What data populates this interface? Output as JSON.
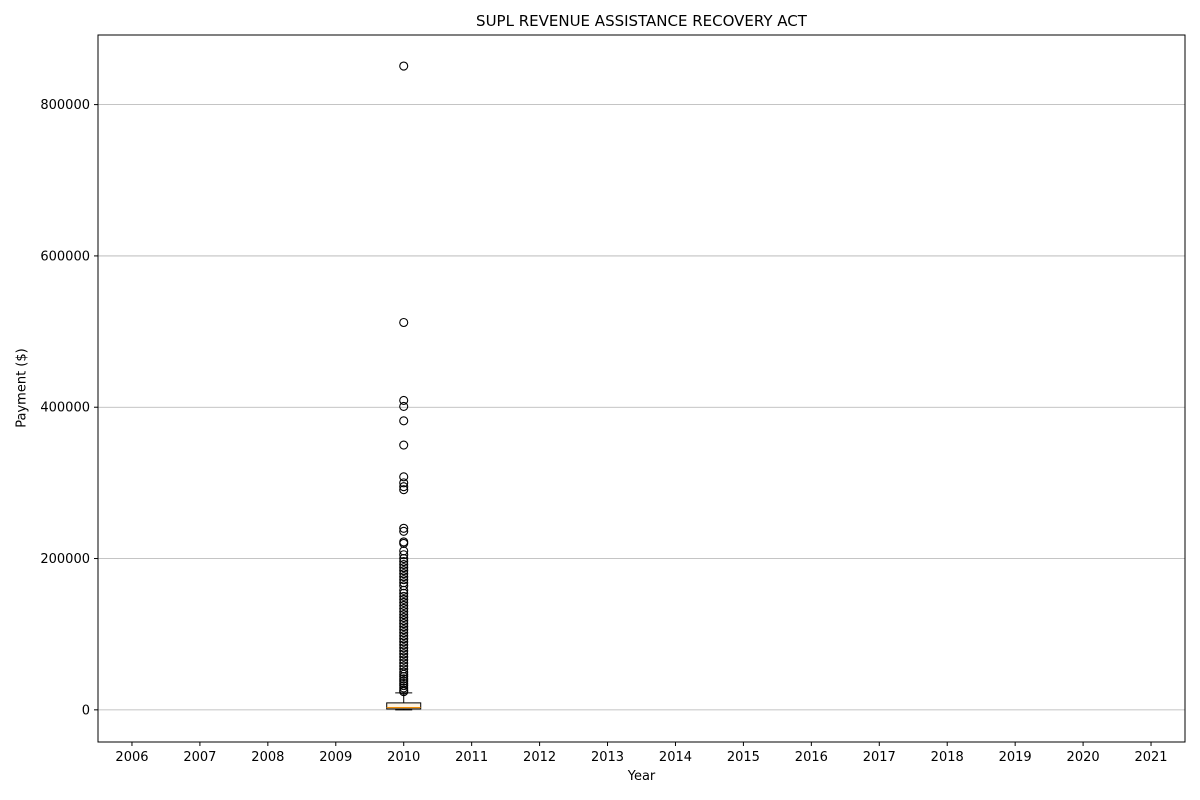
{
  "chart_data": {
    "type": "box",
    "title": "SUPL REVENUE ASSISTANCE RECOVERY ACT",
    "xlabel": "Year",
    "ylabel": "Payment ($)",
    "categories": [
      "2006",
      "2007",
      "2008",
      "2009",
      "2010",
      "2011",
      "2012",
      "2013",
      "2014",
      "2015",
      "2016",
      "2017",
      "2018",
      "2019",
      "2020",
      "2021"
    ],
    "ylim": [
      -42500,
      892000
    ],
    "yticks": [
      0,
      200000,
      400000,
      600000,
      800000
    ],
    "ytick_labels": [
      "0",
      "200000",
      "400000",
      "600000",
      "800000"
    ],
    "grid": "y-axis",
    "boxes": [
      {
        "category": "2010",
        "q1": 1200,
        "median": 3000,
        "q3": 9200,
        "whisker_low": 0,
        "whisker_high": 22500,
        "outliers": [
          851000,
          512000,
          409000,
          401000,
          382000,
          350000,
          308000,
          300000,
          295000,
          291000,
          240000,
          236000,
          222000,
          220000,
          210000,
          205000,
          200000,
          196000,
          192000,
          188000,
          184000,
          180000,
          176000,
          172000,
          168000,
          164000,
          158000,
          154000,
          150000,
          146000,
          142000,
          138000,
          134000,
          130000,
          126000,
          122000,
          118000,
          114000,
          110000,
          106000,
          102000,
          98000,
          94000,
          90000,
          86000,
          82000,
          78000,
          74000,
          70000,
          66000,
          62000,
          58000,
          54000,
          50000,
          47000,
          44000,
          41000,
          38000,
          35000,
          32000,
          29000,
          26000,
          24000
        ]
      }
    ],
    "colors": {
      "box_fill": "#fff3e0",
      "median": "#f08c00",
      "axis": "#000000",
      "grid": "#b0b0b0"
    }
  }
}
